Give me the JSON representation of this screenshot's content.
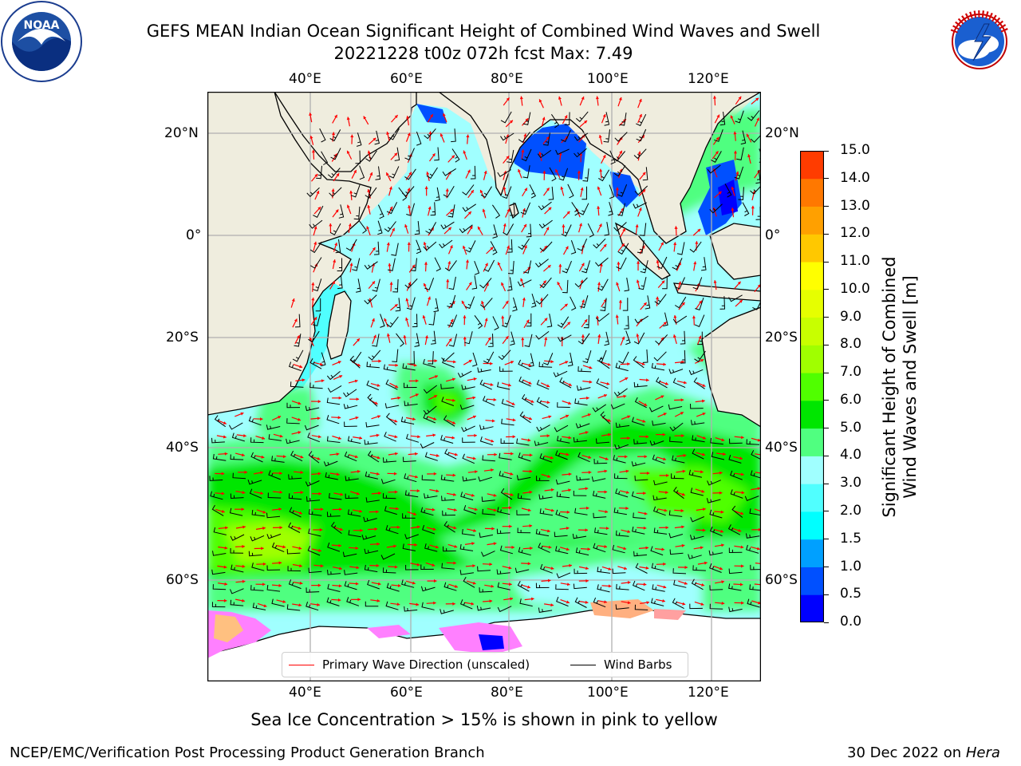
{
  "header": {
    "title_line1": "GEFS MEAN Indian Ocean Significant Height of Combined Wind Waves and Swell",
    "title_line2": "20221228 t00z 072h fcst   Max: 7.49"
  },
  "logos": {
    "left": {
      "text": "NOAA",
      "ring_text": "NATIONAL OCEANIC AND ATMOSPHERIC ADMINISTRATION · U.S. DEPARTMENT OF COMMERCE"
    },
    "right": {
      "ring_text": "NATIONAL WEATHER SERVICE"
    }
  },
  "map": {
    "lon_range": [
      20,
      130
    ],
    "lat_range": [
      -73,
      27
    ],
    "lon_ticks_top": [
      "40°E",
      "60°E",
      "80°E",
      "100°E",
      "120°E"
    ],
    "lon_ticks_bottom": [
      "40°E",
      "60°E",
      "80°E",
      "100°E",
      "120°E"
    ],
    "lat_ticks_left": [
      "20°N",
      "0°",
      "20°S",
      "40°S",
      "60°S"
    ],
    "lat_ticks_right": [
      "20°N",
      "0°",
      "20°S",
      "40°S",
      "60°S"
    ],
    "land_color": "#efedde",
    "grid": true
  },
  "legend": {
    "wave_label": "Primary Wave Direction (unscaled)",
    "wave_color": "#ff0000",
    "barb_label": "Wind Barbs",
    "barb_color": "#000000"
  },
  "colorbar": {
    "title_line1": "Significant Height of Combined",
    "title_line2": "Wind Waves and Swell [m]",
    "levels": [
      "0.0",
      "0.5",
      "1.0",
      "1.5",
      "2.0",
      "3.0",
      "4.0",
      "5.0",
      "6.0",
      "7.0",
      "8.0",
      "9.0",
      "10.0",
      "11.0",
      "12.0",
      "13.0",
      "14.0",
      "15.0"
    ],
    "colors": [
      "#0000ff",
      "#0050ff",
      "#00a0ff",
      "#00ffff",
      "#50ffff",
      "#a0ffff",
      "#50ff80",
      "#00e600",
      "#50ff00",
      "#a0ff00",
      "#c8ff00",
      "#e6ff00",
      "#ffff00",
      "#ffc800",
      "#ffa000",
      "#ff7800",
      "#ff3c00",
      "#ff0000"
    ]
  },
  "caption": "Sea Ice Concentration > 15% is shown in pink to yellow",
  "footer": {
    "left": "NCEP/EMC/Verification Post Processing Product Generation Branch",
    "right_date": "30 Dec 2022 on ",
    "right_host": "Hera"
  }
}
